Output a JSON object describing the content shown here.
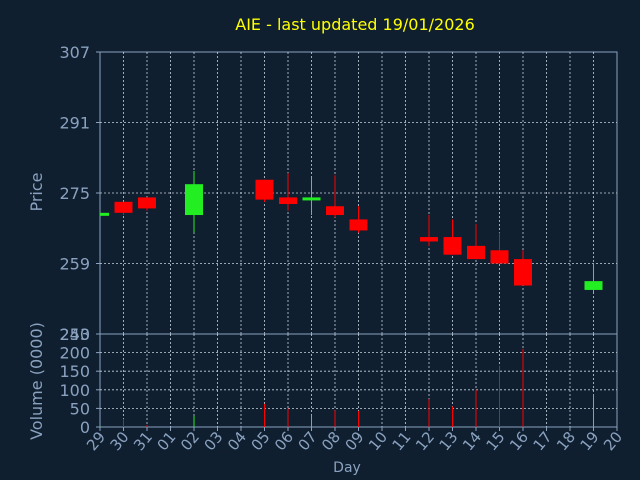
{
  "chart_data": [
    {
      "type": "candlestick",
      "title": "AIE - last updated 19/01/2026",
      "ylabel": "Price",
      "ylim": [
        243,
        307
      ],
      "yticks": [
        "307",
        "291",
        "275",
        "259",
        "243"
      ],
      "grid": true,
      "categories": [
        "29",
        "30",
        "31",
        "01",
        "02",
        "03",
        "04",
        "05",
        "06",
        "07",
        "08",
        "09",
        "10",
        "11",
        "12",
        "13",
        "14",
        "15",
        "16",
        "17",
        "18",
        "19",
        "20"
      ],
      "series": [
        {
          "values": [
            {
              "x": "29",
              "open": 270.5,
              "high": 270.5,
              "low": 270.5,
              "close": 270.5,
              "dir": "up"
            },
            {
              "x": "30",
              "open": 273,
              "high": 273,
              "low": 270,
              "close": 270.5,
              "dir": "down"
            },
            {
              "x": "31",
              "open": 274,
              "high": 274,
              "low": 271,
              "close": 271.5,
              "dir": "down"
            },
            {
              "x": "02",
              "open": 270,
              "high": 280,
              "low": 266,
              "close": 277,
              "dir": "up"
            },
            {
              "x": "05",
              "open": 278,
              "high": 278,
              "low": 273,
              "close": 273.5,
              "dir": "down"
            },
            {
              "x": "06",
              "open": 274,
              "high": 279.5,
              "low": 271,
              "close": 272.5,
              "dir": "down"
            },
            {
              "x": "07",
              "open": 273.5,
              "high": 278.5,
              "low": 270,
              "close": 274,
              "dir": "up"
            },
            {
              "x": "08",
              "open": 272,
              "high": 279,
              "low": 269.5,
              "close": 270,
              "dir": "down"
            },
            {
              "x": "09",
              "open": 269,
              "high": 272,
              "low": 266,
              "close": 266.5,
              "dir": "down"
            },
            {
              "x": "12",
              "open": 265,
              "high": 270,
              "low": 263,
              "close": 264,
              "dir": "down"
            },
            {
              "x": "13",
              "open": 265,
              "high": 269,
              "low": 261,
              "close": 261,
              "dir": "down"
            },
            {
              "x": "14",
              "open": 263,
              "high": 268,
              "low": 260,
              "close": 260,
              "dir": "down"
            },
            {
              "x": "15",
              "open": 262,
              "high": 266,
              "low": 259,
              "close": 259,
              "dir": "down"
            },
            {
              "x": "16",
              "open": 260,
              "high": 262,
              "low": 254,
              "close": 254,
              "dir": "down"
            },
            {
              "x": "19",
              "open": 253,
              "high": 259,
              "low": 252.5,
              "close": 255,
              "dir": "up"
            }
          ]
        }
      ]
    },
    {
      "type": "bar",
      "ylabel": "Volume (0000)",
      "xlabel": "Day",
      "ylim": [
        0,
        250
      ],
      "yticks": [
        "250",
        "200",
        "150",
        "100",
        "50",
        "0"
      ],
      "grid": true,
      "categories": [
        "29",
        "30",
        "31",
        "01",
        "02",
        "03",
        "04",
        "05",
        "06",
        "07",
        "08",
        "09",
        "10",
        "11",
        "12",
        "13",
        "14",
        "15",
        "16",
        "17",
        "18",
        "19",
        "20"
      ],
      "series": [
        {
          "values": [
            {
              "x": "29",
              "volume": 2,
              "dir": "up"
            },
            {
              "x": "30",
              "volume": 22,
              "dir": "down"
            },
            {
              "x": "31",
              "volume": 5,
              "dir": "down"
            },
            {
              "x": "02",
              "volume": 30,
              "dir": "up"
            },
            {
              "x": "05",
              "volume": 62,
              "dir": "down"
            },
            {
              "x": "06",
              "volume": 50,
              "dir": "down"
            },
            {
              "x": "07",
              "volume": 32,
              "dir": "up"
            },
            {
              "x": "08",
              "volume": 45,
              "dir": "down"
            },
            {
              "x": "09",
              "volume": 43,
              "dir": "down"
            },
            {
              "x": "12",
              "volume": 75,
              "dir": "down"
            },
            {
              "x": "13",
              "volume": 55,
              "dir": "down"
            },
            {
              "x": "14",
              "volume": 100,
              "dir": "down"
            },
            {
              "x": "15",
              "volume": 165,
              "dir": "down"
            },
            {
              "x": "16",
              "volume": 210,
              "dir": "down"
            },
            {
              "x": "19",
              "volume": 88,
              "dir": "up"
            }
          ]
        }
      ]
    }
  ],
  "colors": {
    "background": "#0f1f30",
    "frame": "#8aa2bf",
    "grid": "#c8d2de",
    "title": "#ffff00",
    "up": "#22ee22",
    "down": "#ff0000"
  }
}
